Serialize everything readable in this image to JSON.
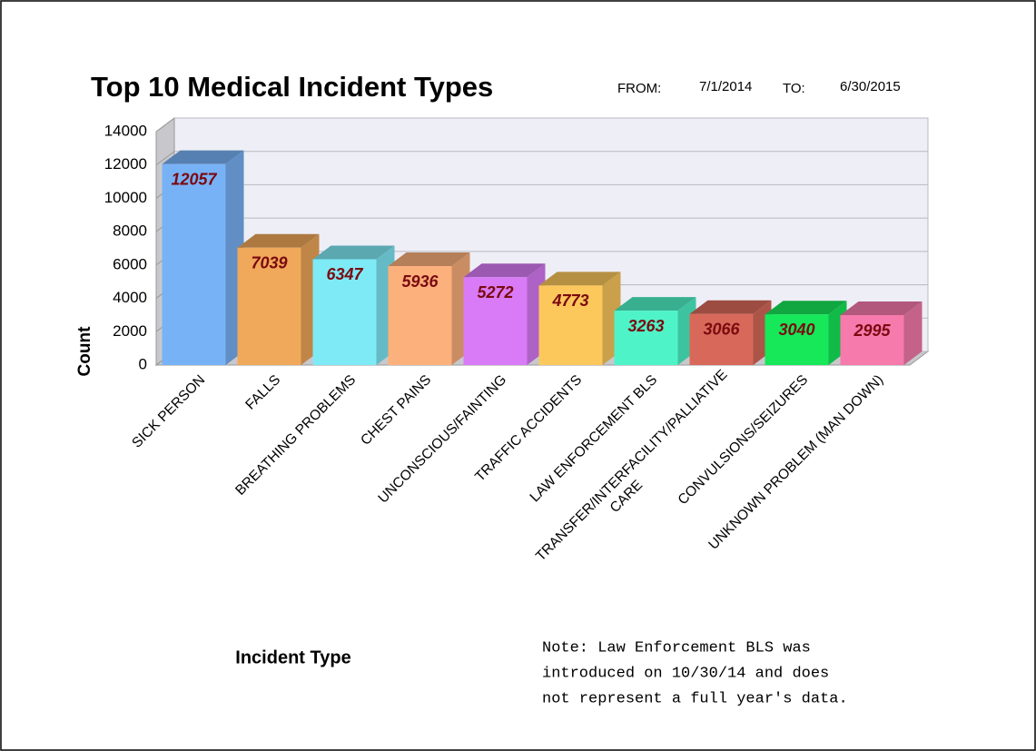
{
  "chart_data": {
    "type": "bar3d",
    "title": "Top 10 Medical Incident Types",
    "from_label": "FROM:",
    "from_date": "7/1/2014",
    "to_label": "TO:",
    "to_date": "6/30/2015",
    "y_label": "Count",
    "x_label": "Incident Type",
    "note": [
      "Note: Law Enforcement BLS was",
      "introduced on 10/30/14 and does",
      "not represent a full year's data."
    ],
    "categories": [
      "SICK PERSON",
      "FALLS",
      "BREATHING PROBLEMS",
      "CHEST PAINS",
      "UNCONSCIOUS/FAINTING",
      "TRAFFIC ACCIDENTS",
      "LAW ENFORCEMENT BLS",
      "TRANSFER/INTERFACILITY/PALLIATIVE CARE",
      "CONVULSIONS/SEIZURES",
      "UNKNOWN PROBLEM (MAN DOWN)"
    ],
    "values": [
      12057,
      7039,
      6347,
      5936,
      5272,
      4773,
      3263,
      3066,
      3040,
      2995
    ],
    "colors": [
      "#78b2f6",
      "#f0a85a",
      "#7eeaf6",
      "#fcb07c",
      "#d97bf6",
      "#fcc85c",
      "#4ef4c8",
      "#d8695a",
      "#16e85a",
      "#f67aac"
    ],
    "ylim": [
      0,
      14000
    ],
    "yticks": [
      0,
      2000,
      4000,
      6000,
      8000,
      10000,
      12000,
      14000
    ],
    "grid": true
  }
}
